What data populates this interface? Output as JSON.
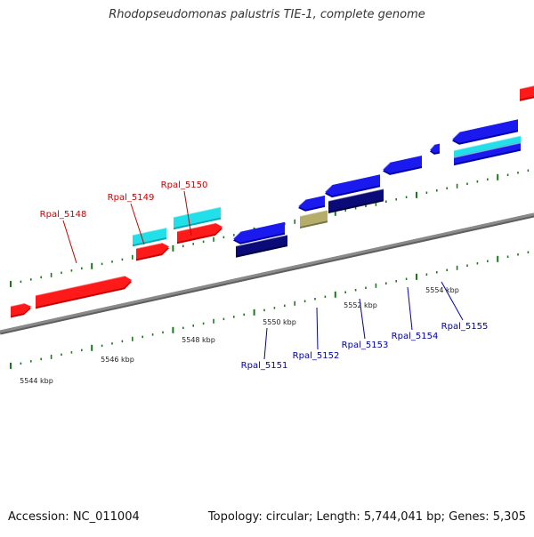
{
  "title": "Rhodopseudomonas palustris TIE-1, complete genome",
  "footer": {
    "accession": "Accession: NC_011004",
    "summary": "Topology: circular; Length: 5,744,041 bp; Genes: 5,305"
  },
  "colors": {
    "forward_gene": "#ff1a1a",
    "forward_gene_dark": "#c40000",
    "forward_rna": "#22e0ea",
    "reverse_gene": "#1a1aee",
    "reverse_gene_dark": "#0000a8",
    "reverse_cds_navy": "#0a0a78",
    "reverse_cds_tan": "#b5ad6a",
    "backbone": "#8a8a8a",
    "tick": "#1a7a1a",
    "forward_label": "#cc0000",
    "reverse_label": "#0000aa",
    "position_label": "#222222"
  },
  "position_labels": [
    "5544 kbp",
    "5546 kbp",
    "5548 kbp",
    "5550 kbp",
    "5552 kbp",
    "5554 kbp"
  ],
  "forward_gene_labels": [
    "Rpal_5148",
    "Rpal_5149",
    "Rpal_5150"
  ],
  "reverse_gene_labels": [
    "Rpal_5151",
    "Rpal_5152",
    "Rpal_5153",
    "Rpal_5154",
    "Rpal_5155"
  ]
}
